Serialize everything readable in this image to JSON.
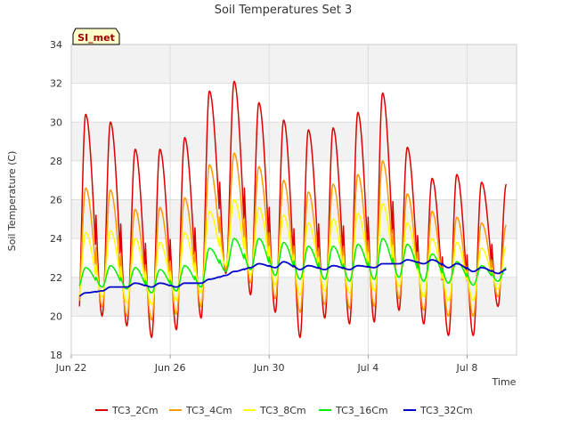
{
  "chart_data": {
    "type": "line",
    "title": "Soil Temperatures Set 3",
    "xlabel": "Time",
    "ylabel": "Soil Temperature (C)",
    "ylim": [
      18,
      34
    ],
    "yticks": [
      18,
      20,
      22,
      24,
      26,
      28,
      30,
      32,
      34
    ],
    "xlim": [
      "2023-06-22",
      "2023-07-10"
    ],
    "xticks": [
      {
        "date": "2023-06-22",
        "label": "Jun 22"
      },
      {
        "date": "2023-06-26",
        "label": "Jun 26"
      },
      {
        "date": "2023-06-30",
        "label": "Jun 30"
      },
      {
        "date": "2023-07-04",
        "label": "Jul 4"
      },
      {
        "date": "2023-07-08",
        "label": "Jul 8"
      }
    ],
    "grid": true,
    "legend_position": "bottom",
    "station_tag": "SI_met",
    "days": [
      "06-22",
      "06-23",
      "06-24",
      "06-25",
      "06-26",
      "06-27",
      "06-28",
      "06-29",
      "06-30",
      "07-01",
      "07-02",
      "07-03",
      "07-04",
      "07-05",
      "07-06",
      "07-07",
      "07-08",
      "07-09"
    ],
    "series": [
      {
        "name": "TC3_2Cm",
        "color": "#dd0000",
        "width": 1.5,
        "min": [
          18.8,
          20.0,
          19.5,
          18.9,
          19.3,
          19.9,
          22.2,
          21.1,
          20.2,
          18.9,
          19.9,
          19.6,
          19.7,
          20.3,
          19.6,
          19.0,
          19.0,
          20.5
        ],
        "max": [
          30.4,
          30.0,
          28.6,
          28.6,
          29.2,
          31.6,
          32.1,
          31.0,
          30.1,
          29.6,
          29.7,
          30.5,
          31.5,
          28.7,
          27.1,
          27.3,
          26.9,
          26.8
        ]
      },
      {
        "name": "TC3_4Cm",
        "color": "#ff9900",
        "width": 1.5,
        "min": [
          19.8,
          20.5,
          20.0,
          19.8,
          20.1,
          20.5,
          22.4,
          21.7,
          20.9,
          20.2,
          20.6,
          20.4,
          20.5,
          20.9,
          20.3,
          20.0,
          20.0,
          21.0
        ],
        "max": [
          26.6,
          26.5,
          25.5,
          25.6,
          26.1,
          27.8,
          28.4,
          27.7,
          27.0,
          26.4,
          26.8,
          27.3,
          28.0,
          26.3,
          25.4,
          25.1,
          24.8,
          24.7
        ]
      },
      {
        "name": "TC3_8Cm",
        "color": "#ffff00",
        "width": 1.5,
        "min": [
          20.5,
          21.0,
          20.7,
          20.6,
          20.8,
          21.2,
          22.6,
          22.1,
          21.6,
          21.1,
          21.3,
          21.2,
          21.3,
          21.5,
          21.0,
          20.8,
          20.8,
          21.4
        ],
        "max": [
          24.3,
          24.4,
          24.0,
          23.8,
          24.3,
          25.4,
          26.0,
          25.6,
          25.2,
          24.8,
          25.0,
          25.3,
          25.8,
          24.8,
          24.0,
          23.8,
          23.5,
          23.6
        ]
      },
      {
        "name": "TC3_16Cm",
        "color": "#00ee00",
        "width": 1.5,
        "min": [
          21.4,
          21.5,
          21.4,
          21.2,
          21.3,
          21.5,
          22.3,
          22.4,
          22.1,
          21.9,
          21.9,
          21.8,
          21.9,
          22.0,
          21.8,
          21.7,
          21.6,
          21.8
        ],
        "max": [
          22.5,
          22.6,
          22.5,
          22.4,
          22.6,
          23.5,
          24.0,
          24.0,
          23.8,
          23.6,
          23.6,
          23.7,
          24.0,
          23.7,
          23.2,
          22.8,
          22.6,
          22.5
        ]
      },
      {
        "name": "TC3_32Cm",
        "color": "#0000cc",
        "width": 1.8,
        "min": [
          21.0,
          21.3,
          21.5,
          21.5,
          21.5,
          21.7,
          22.1,
          22.5,
          22.5,
          22.4,
          22.4,
          22.4,
          22.5,
          22.7,
          22.7,
          22.5,
          22.3,
          22.2
        ],
        "max": [
          21.2,
          21.5,
          21.7,
          21.7,
          21.7,
          21.9,
          22.3,
          22.7,
          22.8,
          22.6,
          22.6,
          22.6,
          22.7,
          22.9,
          22.9,
          22.7,
          22.5,
          22.4
        ]
      }
    ]
  }
}
